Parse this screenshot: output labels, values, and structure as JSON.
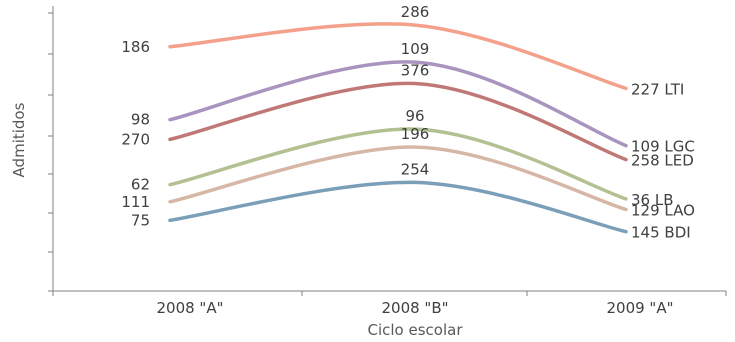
{
  "chart_data": {
    "type": "line",
    "categories": [
      "2008 \"A\"",
      "2008 \"B\"",
      "2009 \"A\""
    ],
    "xlabel": "Ciclo escolar",
    "ylabel": "Admitidos",
    "grid": false,
    "legend": "none",
    "series": [
      {
        "name": "LTI",
        "color": "#f4a08b",
        "pos": [
          0.857,
          0.933,
          0.711
        ],
        "values": [
          186,
          286,
          227
        ],
        "value_labels": [
          "186",
          "286",
          "227"
        ],
        "end_label": "227 LTI"
      },
      {
        "name": "LGC",
        "color": "#a994bf",
        "pos": [
          0.601,
          0.803,
          0.51
        ],
        "values": [
          98,
          109,
          109
        ],
        "value_labels": [
          "98",
          "109",
          "109"
        ],
        "end_label": "109 LGC"
      },
      {
        "name": "LED",
        "color": "#c07876",
        "pos": [
          0.532,
          0.728,
          0.461
        ],
        "values": [
          270,
          376,
          258
        ],
        "value_labels": [
          "270",
          "376",
          "258"
        ],
        "end_label": "258 LED"
      },
      {
        "name": "LB",
        "color": "#b3c192",
        "pos": [
          0.373,
          0.568,
          0.323
        ],
        "values": [
          62,
          96,
          36
        ],
        "value_labels": [
          "62",
          "96",
          "36"
        ],
        "end_label": "36 LB"
      },
      {
        "name": "LAO",
        "color": "#d6b7a6",
        "pos": [
          0.313,
          0.505,
          0.286
        ],
        "values": [
          111,
          196,
          129
        ],
        "value_labels": [
          "111",
          "196",
          "129"
        ],
        "end_label": "129 LAO"
      },
      {
        "name": "BDI",
        "color": "#7b9fb8",
        "pos": [
          0.248,
          0.381,
          0.208
        ],
        "values": [
          75,
          254,
          145
        ],
        "value_labels": [
          "75",
          "254",
          "145"
        ],
        "end_label": "145 BDI"
      }
    ]
  }
}
